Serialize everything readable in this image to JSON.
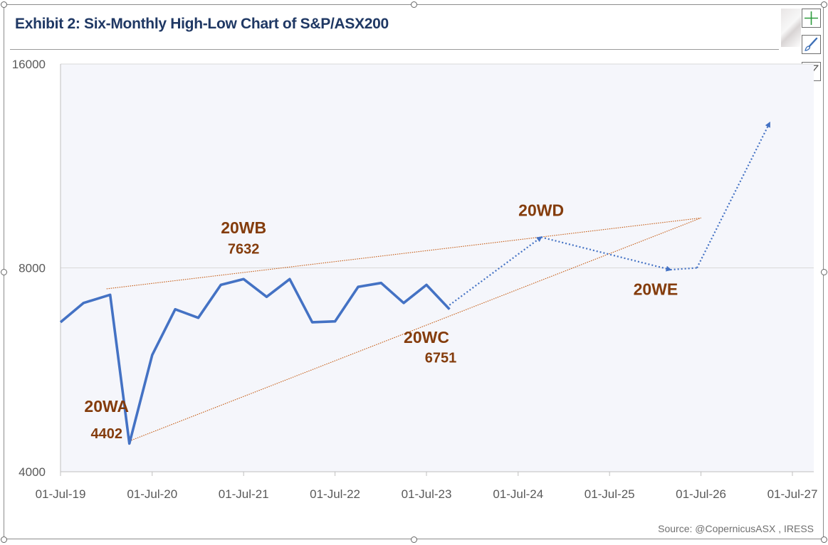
{
  "title": "Exhibit 2: Six-Monthly High-Low Chart of S&P/ASX200",
  "source": "Source: @CopernicusASX , IRESS",
  "chart_data": {
    "type": "line",
    "title": "Exhibit 2: Six-Monthly High-Low Chart of S&P/ASX200",
    "y_ticks": [
      "16000",
      "8000",
      "4000"
    ],
    "y_tick_values": [
      16000,
      8000,
      4000
    ],
    "x_ticks": [
      "01-Jul-19",
      "01-Jul-20",
      "01-Jul-21",
      "01-Jul-22",
      "01-Jul-23",
      "01-Jul-24",
      "01-Jul-25",
      "01-Jul-26",
      "01-Jul-27"
    ],
    "y_scale": "log",
    "ylim": [
      4000,
      16000
    ],
    "xlim": [
      "2019-07-01",
      "2027-07-01"
    ],
    "grid": {
      "horizontal": true,
      "vertical": false
    },
    "series": [
      {
        "color": "#4472c4",
        "points": [
          {
            "x": "2019-07-01",
            "y": 6650
          },
          {
            "x": "2019-10-01",
            "y": 7100
          },
          {
            "x": "2020-01-15",
            "y": 7300
          },
          {
            "x": "2020-04-01",
            "y": 4402
          },
          {
            "x": "2020-07-01",
            "y": 5950
          },
          {
            "x": "2020-10-01",
            "y": 6950
          },
          {
            "x": "2021-01-01",
            "y": 6750
          },
          {
            "x": "2021-04-01",
            "y": 7550
          },
          {
            "x": "2021-07-01",
            "y": 7700
          },
          {
            "x": "2021-10-01",
            "y": 7250
          },
          {
            "x": "2022-01-01",
            "y": 7700
          },
          {
            "x": "2022-04-01",
            "y": 6650
          },
          {
            "x": "2022-07-01",
            "y": 6670
          },
          {
            "x": "2022-10-01",
            "y": 7500
          },
          {
            "x": "2023-01-01",
            "y": 7600
          },
          {
            "x": "2023-04-01",
            "y": 7100
          },
          {
            "x": "2023-07-01",
            "y": 7550
          },
          {
            "x": "2023-10-01",
            "y": 6950
          }
        ]
      }
    ],
    "projection": {
      "color": "#4472c4",
      "style": "dotted-arrow",
      "points": [
        {
          "x": "2023-10-01",
          "y": 7050
        },
        {
          "x": "2024-10-01",
          "y": 8880
        },
        {
          "x": "2026-03-01",
          "y": 7950
        },
        {
          "x": "2026-06-15",
          "y": 8000
        },
        {
          "x": "2027-04-01",
          "y": 13100
        }
      ]
    },
    "trendlines": [
      {
        "color": "#c55a11",
        "from": {
          "x": "2020-01-01",
          "y": 7450
        },
        "to": {
          "x": "2026-07-01",
          "y": 9480
        }
      },
      {
        "color": "#c55a11",
        "from": {
          "x": "2020-04-01",
          "y": 4440
        },
        "to": {
          "x": "2026-07-01",
          "y": 9480
        }
      }
    ],
    "annotations": [
      {
        "label": "20WA",
        "value": "4402",
        "x": "2020-01-01",
        "y": 4900,
        "value_y": 4480
      },
      {
        "label": "20WB",
        "value": "7632",
        "x": "2021-07-01",
        "y": 9000,
        "value_y": 8400
      },
      {
        "label": "20WC",
        "value": "6751",
        "x": "2023-07-01",
        "y": 6200,
        "value_y": 5800
      },
      {
        "label": "20WD",
        "value": "",
        "x": "2024-10-01",
        "y": 9550
      },
      {
        "label": "20WE",
        "value": "",
        "x": "2026-01-01",
        "y": 7300
      }
    ],
    "annotation_color": "#843c0c"
  },
  "tools": [
    {
      "name": "chart-elements-plus-icon"
    },
    {
      "name": "chart-styles-brush-icon"
    },
    {
      "name": "chart-filter-funnel-icon"
    }
  ]
}
